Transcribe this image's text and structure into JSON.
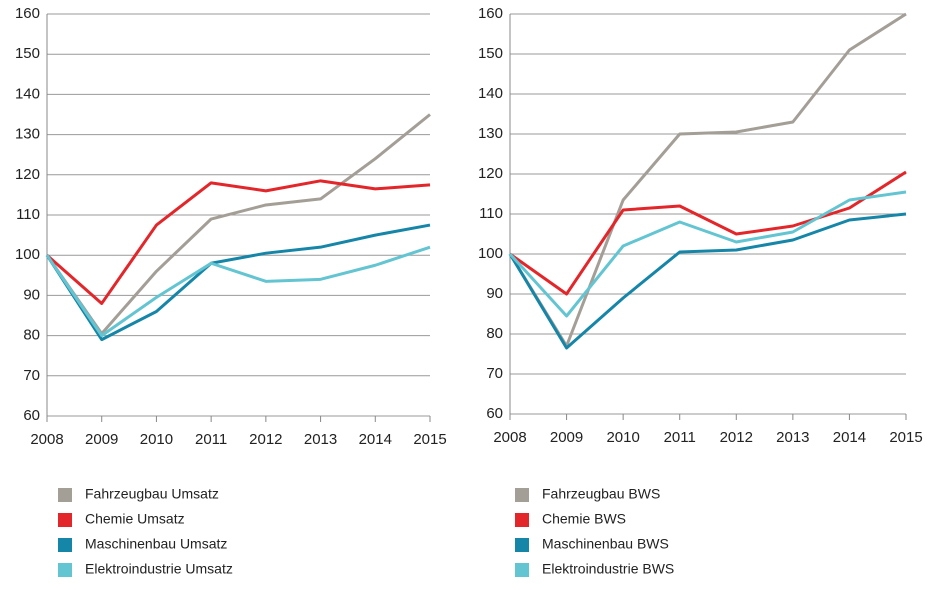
{
  "chart_data": [
    {
      "type": "line",
      "x": [
        2008,
        2009,
        2010,
        2011,
        2012,
        2013,
        2014,
        2015
      ],
      "xlim": [
        2008,
        2015
      ],
      "xticks": [
        2008,
        2009,
        2010,
        2011,
        2012,
        2013,
        2014,
        2015
      ],
      "ylim": [
        60,
        160
      ],
      "yticks": [
        60,
        70,
        80,
        90,
        100,
        110,
        120,
        130,
        140,
        150,
        160
      ],
      "grid": true,
      "series": [
        {
          "name": "Fahrzeugbau Umsatz",
          "color": "#a39e96",
          "values": [
            100,
            80.5,
            96,
            109,
            112.5,
            114,
            124,
            135
          ]
        },
        {
          "name": "Chemie Umsatz",
          "color": "#e3262a",
          "values": [
            100,
            88,
            107.5,
            118,
            116,
            118.5,
            116.5,
            117.5
          ]
        },
        {
          "name": "Maschinenbau Umsatz",
          "color": "#1586a8",
          "values": [
            100,
            79,
            86,
            98,
            100.5,
            102,
            105,
            107.5
          ]
        },
        {
          "name": "Elektroindustrie Umsatz",
          "color": "#63c5d2",
          "values": [
            100,
            80,
            89.5,
            98,
            93.5,
            94,
            97.5,
            102
          ]
        }
      ]
    },
    {
      "type": "line",
      "x": [
        2008,
        2009,
        2010,
        2011,
        2012,
        2013,
        2014,
        2015
      ],
      "xlim": [
        2008,
        2015
      ],
      "xticks": [
        2008,
        2009,
        2010,
        2011,
        2012,
        2013,
        2014,
        2015
      ],
      "ylim": [
        60,
        160
      ],
      "yticks": [
        60,
        70,
        80,
        90,
        100,
        110,
        120,
        130,
        140,
        150,
        160
      ],
      "grid": true,
      "series": [
        {
          "name": "Fahrzeugbau BWS",
          "color": "#a39e96",
          "values": [
            100,
            77,
            113.5,
            130,
            130.5,
            133,
            151,
            160
          ]
        },
        {
          "name": "Chemie BWS",
          "color": "#e3262a",
          "values": [
            100,
            90,
            111,
            112,
            105,
            107,
            111.5,
            120.5
          ]
        },
        {
          "name": "Maschinenbau BWS",
          "color": "#1586a8",
          "values": [
            100,
            76.5,
            89,
            100.5,
            101,
            103.5,
            108.5,
            110
          ]
        },
        {
          "name": "Elektroindustrie BWS",
          "color": "#63c5d2",
          "values": [
            100,
            84.5,
            102,
            108,
            103,
            105.5,
            113.5,
            115.5
          ]
        }
      ]
    }
  ]
}
